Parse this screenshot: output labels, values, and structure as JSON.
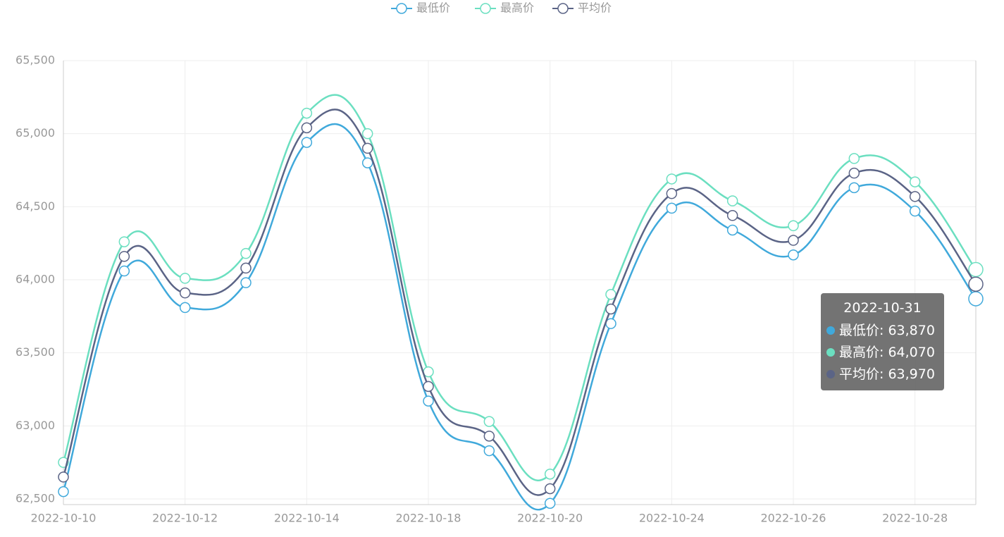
{
  "chart_data": {
    "type": "line",
    "categories": [
      "2022-10-10",
      null,
      "2022-10-12",
      null,
      "2022-10-14",
      null,
      "2022-10-18",
      null,
      "2022-10-20",
      null,
      "2022-10-24",
      null,
      "2022-10-26",
      null,
      "2022-10-28",
      "2022-10-31"
    ],
    "series": [
      {
        "name": "最低价",
        "color": "#40a9db",
        "values": [
          62550,
          64060,
          63810,
          63980,
          64940,
          64800,
          63170,
          62830,
          62470,
          63700,
          64490,
          64340,
          64170,
          64630,
          64470,
          63870
        ]
      },
      {
        "name": "最高价",
        "color": "#6bdfc0",
        "values": [
          62750,
          64260,
          64010,
          64180,
          65140,
          65000,
          63370,
          63030,
          62670,
          63900,
          64690,
          64540,
          64370,
          64830,
          64670,
          64070
        ]
      },
      {
        "name": "平均价",
        "color": "#5b6486",
        "values": [
          62650,
          64160,
          63910,
          64080,
          65040,
          64900,
          63270,
          62930,
          62570,
          63800,
          64590,
          64440,
          64270,
          64730,
          64570,
          63970
        ]
      }
    ],
    "ylim": [
      62500,
      65500
    ],
    "yticks": [
      {
        "value": 62500,
        "label": "62,500"
      },
      {
        "value": 63000,
        "label": "63,000"
      },
      {
        "value": 63500,
        "label": "63,500"
      },
      {
        "value": 64000,
        "label": "64,000"
      },
      {
        "value": 64500,
        "label": "64,500"
      },
      {
        "value": 65000,
        "label": "65,000"
      },
      {
        "value": 65500,
        "label": "65,500"
      }
    ],
    "grid": true,
    "legend": "top",
    "tooltip": {
      "value_labels": [
        "63,870",
        "64,070",
        "63,970"
      ]
    }
  }
}
